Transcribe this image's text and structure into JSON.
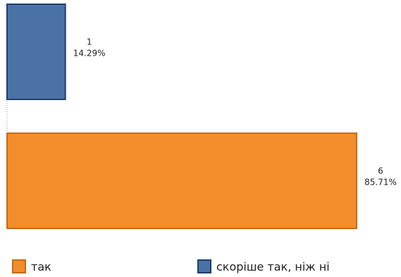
{
  "chart_data": {
    "type": "bar",
    "orientation": "horizontal",
    "categories": [
      "скоріше так, ніж ні",
      "так"
    ],
    "values": [
      1,
      6
    ],
    "percent_labels": [
      "14.29%",
      "85.71%"
    ],
    "colors": [
      "#4a72a6",
      "#f28e2b"
    ],
    "bar_border_colors": [
      "#1f3f6e",
      "#c76a12"
    ],
    "xlim": [
      0,
      6
    ],
    "title": "",
    "xlabel": "",
    "ylabel": "",
    "grid": false,
    "legend_position": "bottom",
    "legend": [
      {
        "label": "так",
        "color": "#f28e2b",
        "border": "#c76a12"
      },
      {
        "label": "скоріше так, ніж ні",
        "color": "#4a72a6",
        "border": "#1f3f6e"
      }
    ]
  }
}
